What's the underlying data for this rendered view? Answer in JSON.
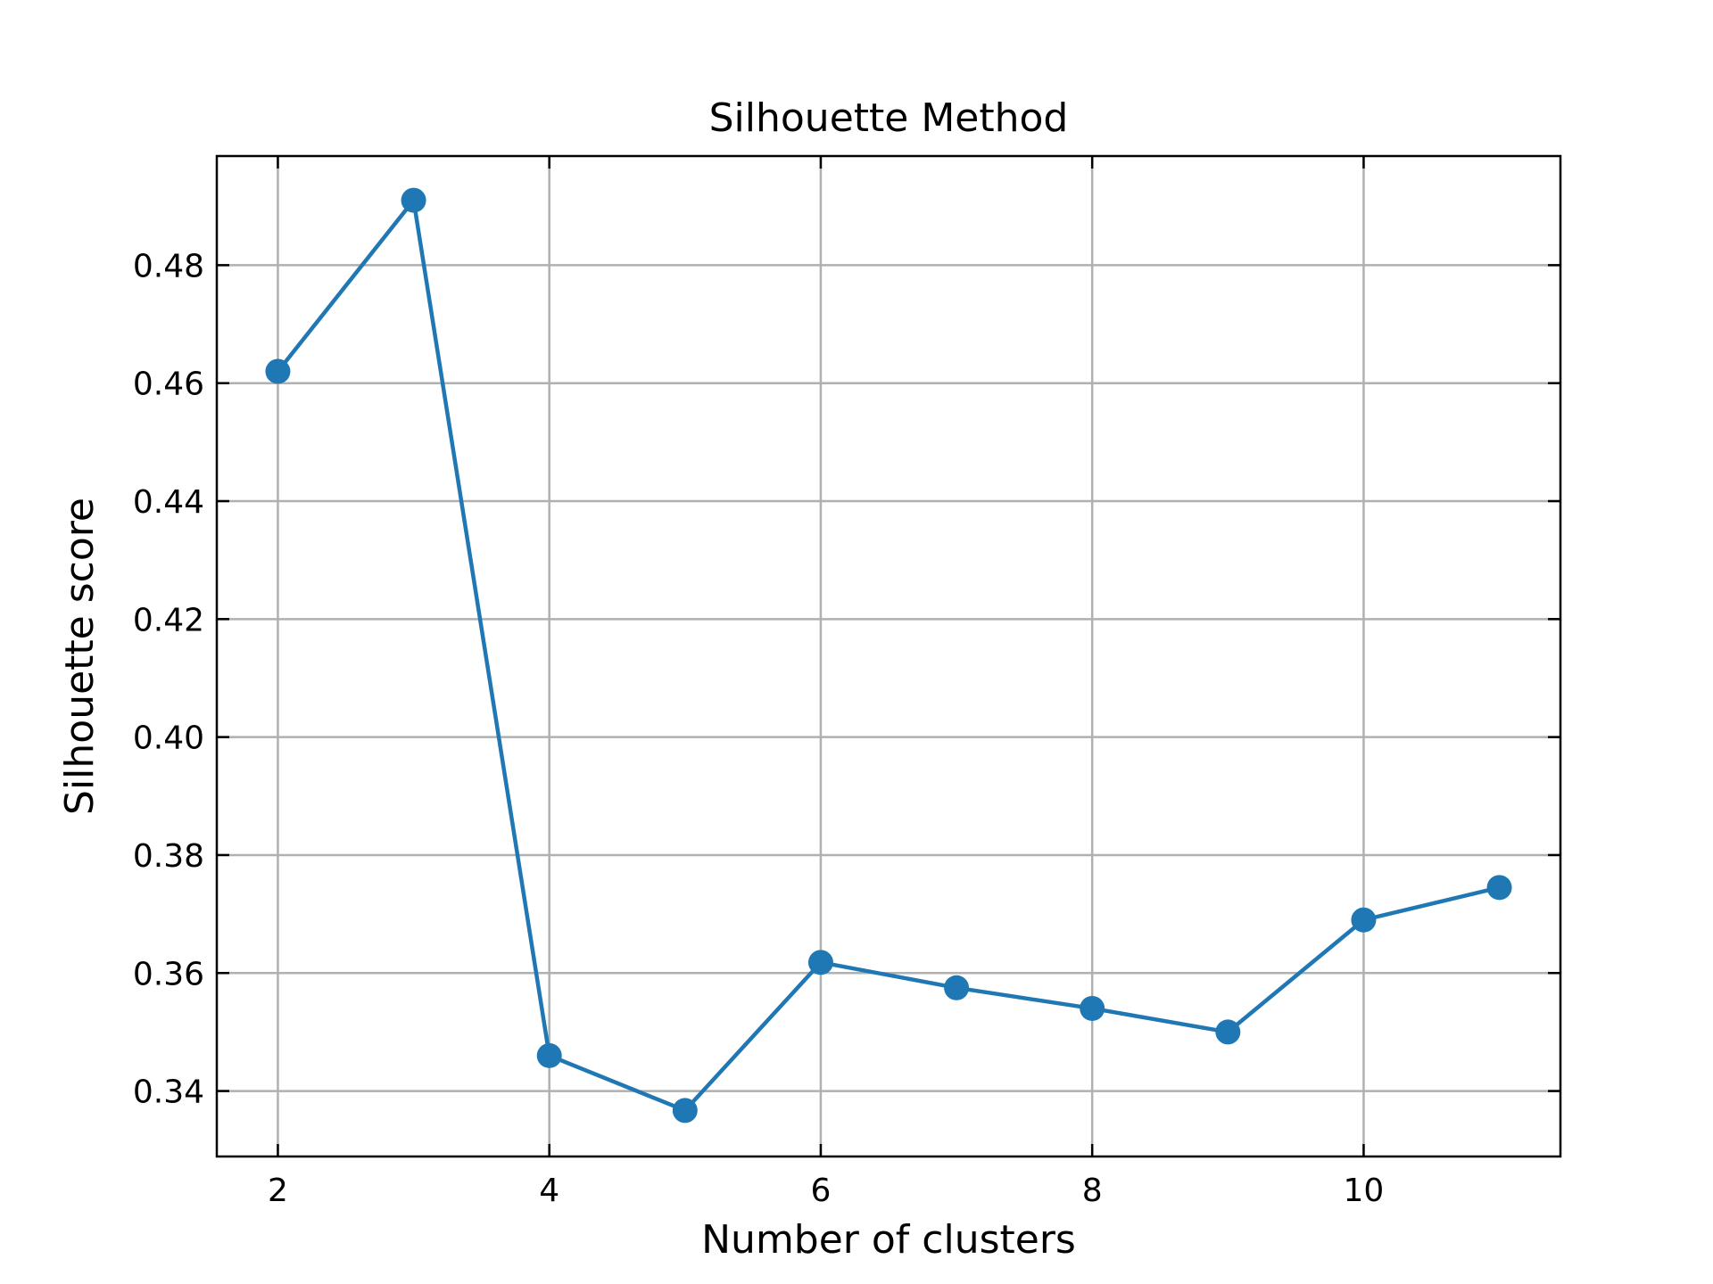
{
  "chart_data": {
    "type": "line",
    "title": "Silhouette Method",
    "xlabel": "Number of clusters",
    "ylabel": "Silhouette score",
    "x": [
      2,
      3,
      4,
      5,
      6,
      7,
      8,
      9,
      10,
      11
    ],
    "series": [
      {
        "values": [
          0.462,
          0.491,
          0.346,
          0.3367,
          0.3618,
          0.3575,
          0.354,
          0.35,
          0.369,
          0.3745
        ],
        "color": "#1f77b4",
        "marker": "circle"
      }
    ],
    "xlim": [
      1.55,
      11.45
    ],
    "ylim": [
      0.3289,
      0.4985
    ],
    "xticks": [
      2,
      4,
      6,
      8,
      10
    ],
    "xtick_labels": [
      "2",
      "4",
      "6",
      "8",
      "10"
    ],
    "yticks": [
      0.34,
      0.36,
      0.38,
      0.4,
      0.42,
      0.44,
      0.46,
      0.48
    ],
    "ytick_labels": [
      "0.34",
      "0.36",
      "0.38",
      "0.40",
      "0.42",
      "0.44",
      "0.46",
      "0.48"
    ],
    "grid": true,
    "tick_direction": "in",
    "legend": "none"
  }
}
